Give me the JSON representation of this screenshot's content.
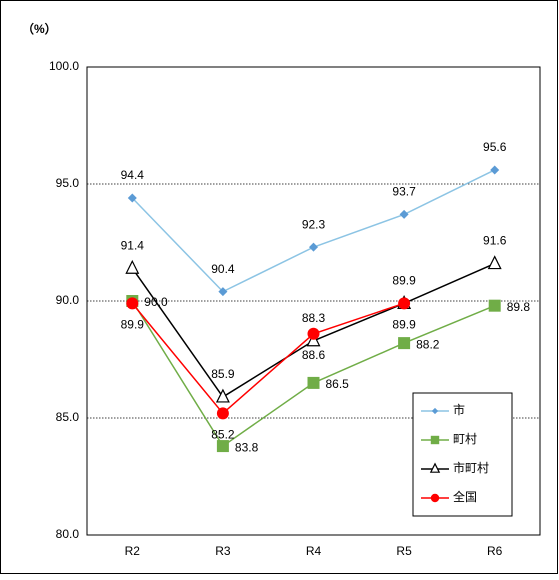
{
  "chart_data": {
    "type": "line",
    "unit_label": "（%）",
    "categories": [
      "R2",
      "R3",
      "R4",
      "R5",
      "R6"
    ],
    "ylim": [
      80,
      100
    ],
    "yticks": [
      {
        "value": 80,
        "label": "80.0"
      },
      {
        "value": 85,
        "label": "85.0"
      },
      {
        "value": 90,
        "label": "90.0"
      },
      {
        "value": 95,
        "label": "95.0"
      },
      {
        "value": 100,
        "label": "100.0"
      }
    ],
    "grid": true,
    "legend": "lower right",
    "series": [
      {
        "name": "市",
        "color": "#8cc4e4",
        "marker_color": "#5b9bd5",
        "marker": "diamond",
        "values": [
          94.4,
          90.4,
          92.3,
          93.7,
          95.6
        ],
        "value_labels": [
          "94.4",
          "90.4",
          "92.3",
          "93.7",
          "95.6"
        ]
      },
      {
        "name": "町村",
        "color": "#70ad47",
        "marker_color": "#70ad47",
        "marker": "square",
        "values": [
          90.0,
          83.8,
          86.5,
          88.2,
          89.8
        ],
        "value_labels": [
          "90.0",
          "83.8",
          "86.5",
          "88.2",
          "89.8"
        ]
      },
      {
        "name": "市町村",
        "color": "#000000",
        "marker_color": "#000000",
        "marker": "triangle",
        "values": [
          91.4,
          85.9,
          88.3,
          89.9,
          91.6
        ],
        "value_labels": [
          "91.4",
          "85.9",
          "88.3",
          "89.9",
          "91.6"
        ]
      },
      {
        "name": "全国",
        "color": "#ff0000",
        "marker_color": "#ff0000",
        "marker": "circle",
        "values": [
          89.9,
          85.2,
          88.6,
          89.9,
          null
        ],
        "value_labels": [
          "89.9",
          "85.2",
          "88.6",
          "89.9",
          null
        ]
      }
    ]
  }
}
